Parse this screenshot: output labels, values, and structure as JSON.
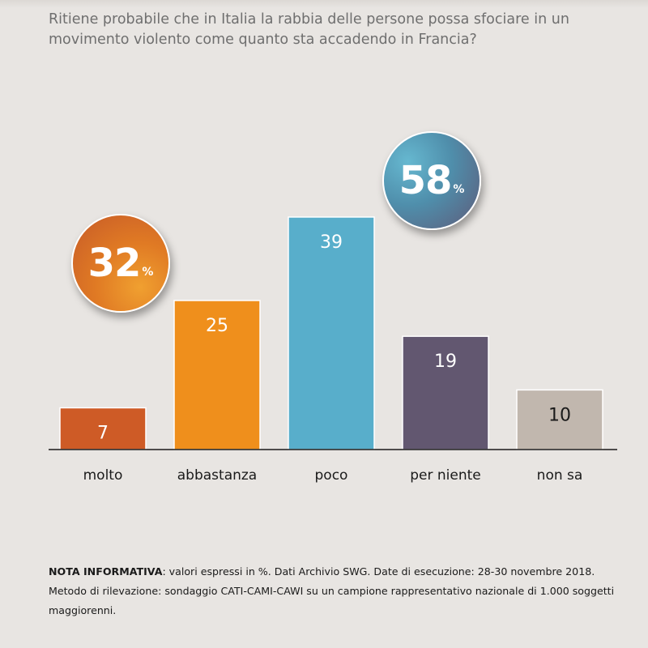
{
  "title": "Ritiene probabile che in Italia la rabbia delle persone possa sfociare in un movimento violento come quanto sta accadendo in Francia?",
  "bubbles": {
    "left": {
      "value": "32",
      "unit": "%"
    },
    "right": {
      "value": "58",
      "unit": "%"
    }
  },
  "chart_data": {
    "type": "bar",
    "categories": [
      "molto",
      "abbastanza",
      "poco",
      "per niente",
      "non sa"
    ],
    "values": [
      7,
      25,
      39,
      19,
      10
    ],
    "colors": [
      "#ce5b26",
      "#ef8f1c",
      "#58aecb",
      "#625770",
      "#c1b7ae"
    ],
    "label_colors": [
      "#ffffff",
      "#ffffff",
      "#ffffff",
      "#ffffff",
      "#1a1a1a"
    ],
    "title": "",
    "xlabel": "",
    "ylabel": "",
    "ylim": [
      0,
      40
    ],
    "grid": false
  },
  "footer": {
    "bold": "NOTA INFORMATIVA",
    "text": ": valori espressi in %. Dati Archivio SWG. Date di esecuzione: 28-30 novembre 2018. Metodo di rilevazione: sondaggio CATI-CAMI-CAWI su un campione rappresentativo nazionale di 1.000 soggetti maggiorenni."
  }
}
